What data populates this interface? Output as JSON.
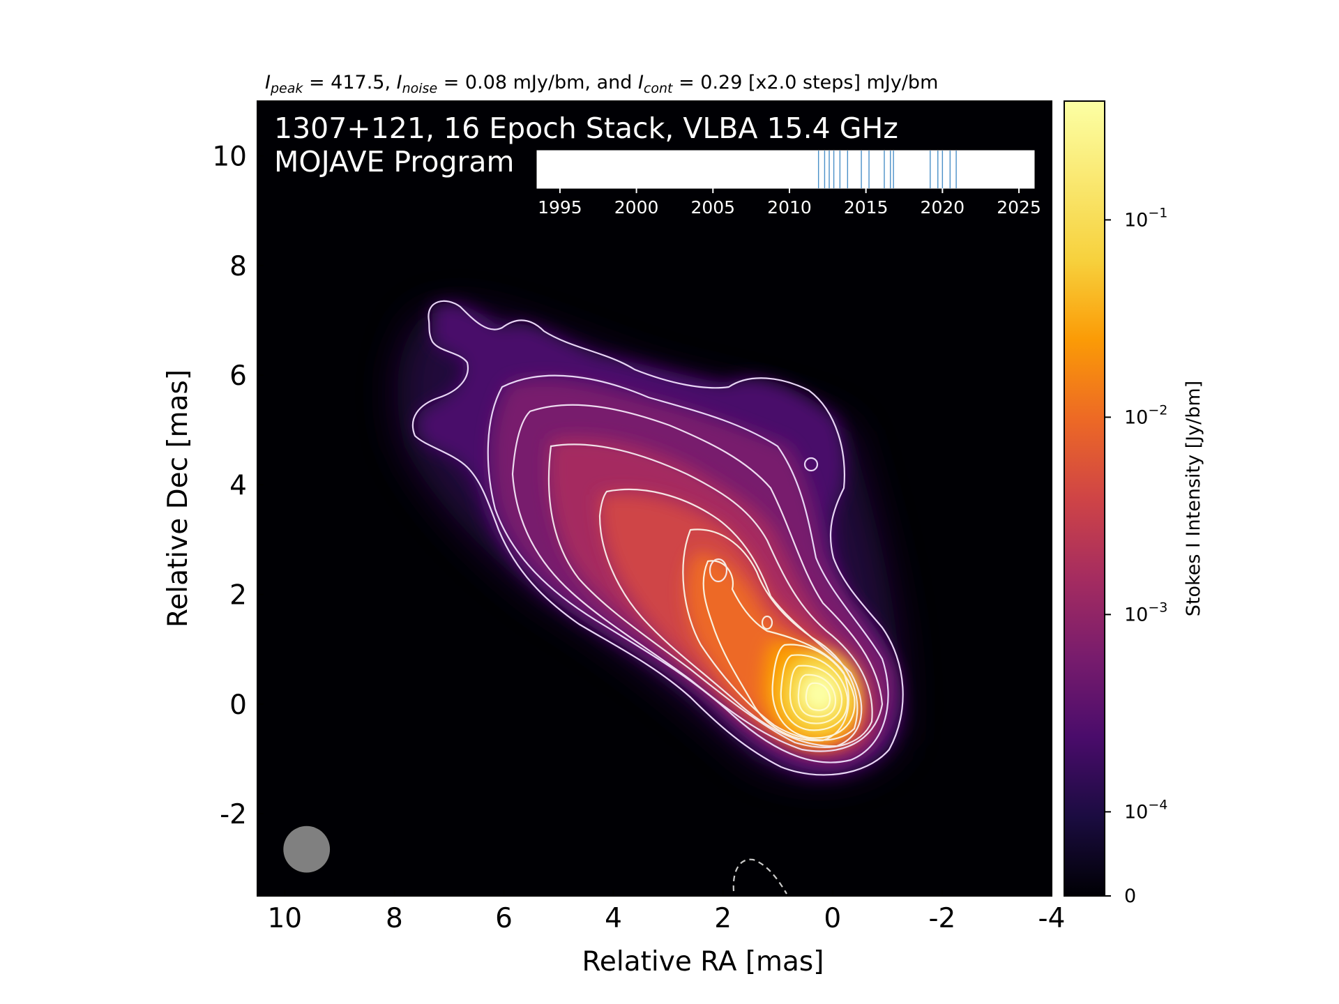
{
  "chart_data": {
    "type": "heatmap",
    "title_parts": {
      "peak_sym": "I",
      "peak_sub": "peak",
      "peak_val": " = 417.5, ",
      "noise_sym": "I",
      "noise_sub": "noise",
      "noise_val": " = 0.08 mJy/bm, and ",
      "cont_sym": "I",
      "cont_sub": "cont",
      "cont_val": " = 0.29 [x2.0 steps] mJy/bm"
    },
    "annotation_line1": "1307+121, 16 Epoch Stack, VLBA 15.4 GHz",
    "annotation_line2": "MOJAVE Program",
    "xlabel": "Relative RA [mas]",
    "ylabel": "Relative Dec [mas]",
    "xlim": [
      10.5,
      -4
    ],
    "ylim": [
      -3.5,
      11
    ],
    "xticks": [
      10,
      8,
      6,
      4,
      2,
      0,
      -2,
      -4
    ],
    "yticks": [
      10,
      8,
      6,
      4,
      2,
      0,
      -2
    ],
    "colorbar": {
      "label": "Stokes I Intensity [Jy/bm]",
      "scale": "log",
      "ticks": [
        {
          "value": 0.1,
          "base": "10",
          "exp": "−1"
        },
        {
          "value": 0.01,
          "base": "10",
          "exp": "−2"
        },
        {
          "value": 0.001,
          "base": "10",
          "exp": "−3"
        },
        {
          "value": 0.0001,
          "base": "10",
          "exp": "−4"
        },
        {
          "value": 0,
          "base": "0",
          "exp": ""
        }
      ],
      "colormap": "inferno"
    },
    "epoch_timeline": {
      "xlim": [
        1993.5,
        2026
      ],
      "ticks": [
        "1995",
        "2000",
        "2005",
        "2010",
        "2015",
        "2020",
        "2025"
      ],
      "tick_values": [
        1995,
        2000,
        2005,
        2010,
        2015,
        2020,
        2025
      ],
      "epochs": [
        2011.9,
        2012.3,
        2012.6,
        2012.9,
        2013.3,
        2013.8,
        2014.7,
        2015.2,
        2016.2,
        2016.6,
        2016.8,
        2019.2,
        2019.7,
        2020.0,
        2020.5,
        2020.9
      ],
      "epoch_color": "#4a90c8"
    },
    "beam": {
      "ra": 9.6,
      "dec": -2.65,
      "diameter_mas": 0.85,
      "color": "#808080"
    },
    "peak_position": [
      0.1,
      0.2
    ],
    "background_color": "#000004",
    "contour_color": "#ffffff"
  }
}
